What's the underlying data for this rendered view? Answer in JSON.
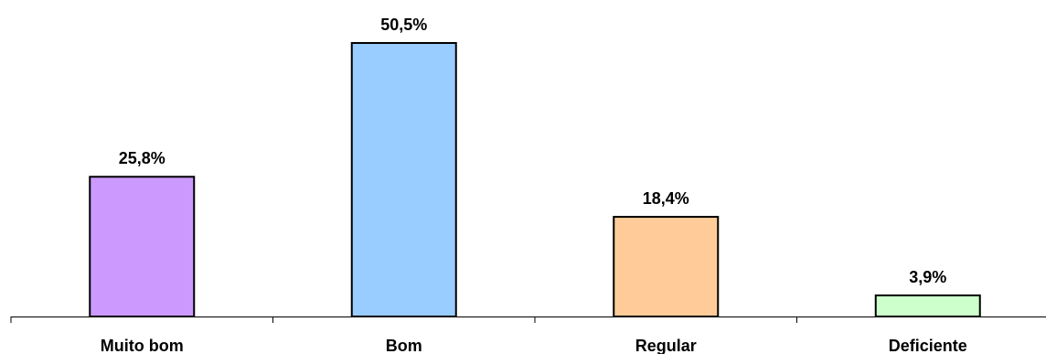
{
  "chart_data": {
    "type": "bar",
    "categories": [
      "Muito bom",
      "Bom",
      "Regular",
      "Deficiente"
    ],
    "values": [
      25.8,
      50.5,
      18.4,
      3.9
    ],
    "data_labels": [
      "25,8%",
      "50,5%",
      "18,4%",
      "3,9%"
    ],
    "unit": "%",
    "ylim": [
      0,
      50.5
    ],
    "grid": false,
    "legend": "none",
    "colors": [
      "#CC99FF",
      "#99CCFF",
      "#FFCC99",
      "#CCFFCC"
    ]
  }
}
